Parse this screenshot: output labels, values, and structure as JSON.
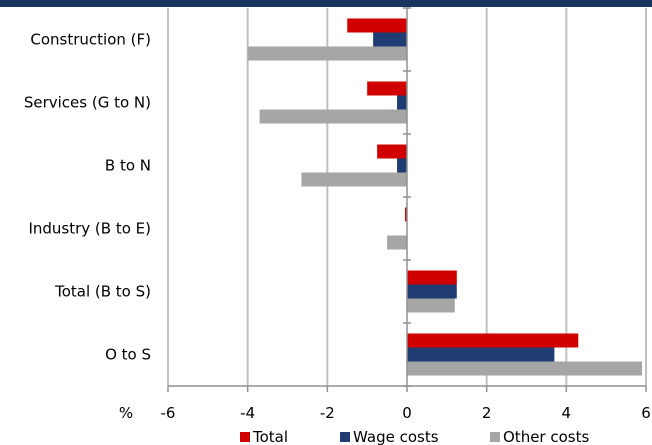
{
  "chart_data": {
    "type": "bar",
    "orientation": "horizontal",
    "categories": [
      "Construction (F)",
      "Services (G to N)",
      "B to N",
      "Industry (B to E)",
      "Total (B to S)",
      "O to S"
    ],
    "series": [
      {
        "name": "Total",
        "color": "#d10000",
        "values": [
          -1.5,
          -1.0,
          -0.75,
          -0.05,
          1.25,
          4.3
        ]
      },
      {
        "name": "Wage costs",
        "color": "#1f3d73",
        "values": [
          -0.85,
          -0.25,
          -0.25,
          0.0,
          1.25,
          3.7
        ]
      },
      {
        "name": "Other costs",
        "color": "#a6a6a6",
        "values": [
          -4.0,
          -3.7,
          -2.65,
          -0.5,
          1.2,
          5.9
        ]
      }
    ],
    "xlim": [
      -6,
      6
    ],
    "xticks": [
      -6,
      -4,
      -2,
      0,
      2,
      4,
      6
    ],
    "xtick_labels": [
      "-6",
      "-4",
      "-2",
      "0",
      "2",
      "4",
      "6"
    ],
    "xunit_label": "%",
    "grid": "vertical",
    "legend_position": "bottom",
    "header_band_color": "#17375e"
  }
}
